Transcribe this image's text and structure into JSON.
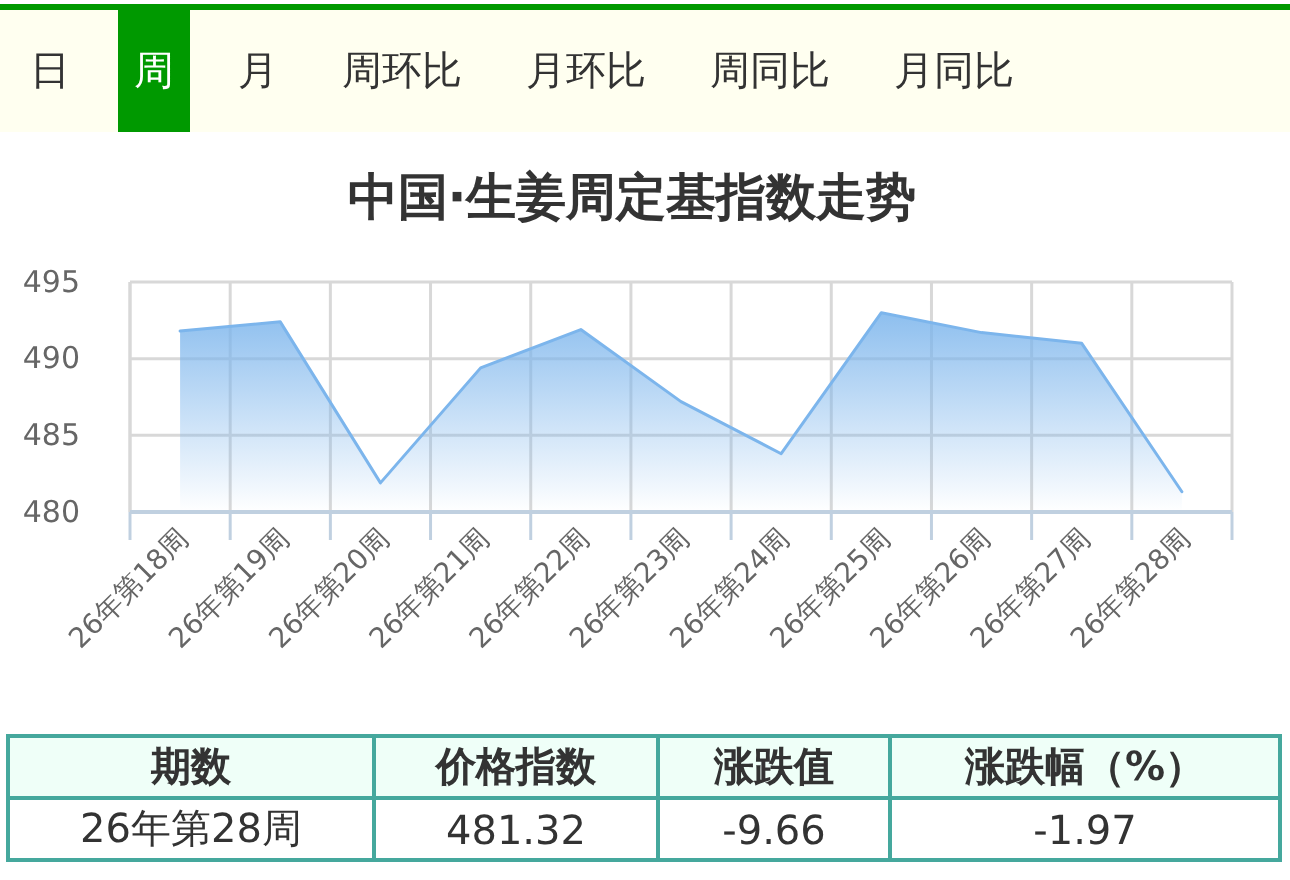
{
  "chart_data": [
    {
      "type": "other",
      "annotations": [
        "日",
        "周",
        "月",
        "周环比",
        "月环比",
        "周同比",
        "月同比"
      ]
    },
    {
      "type": "area",
      "title": "中国·生姜周定基指数走势",
      "categories": [
        "26年第18周",
        "26年第19周",
        "26年第20周",
        "26年第21周",
        "26年第22周",
        "26年第23周",
        "26年第24周",
        "26年第25周",
        "26年第26周",
        "26年第27周",
        "26年第28周"
      ],
      "series": [
        {
          "color": "#7cb5ec",
          "values": [
            491.8,
            492.4,
            481.9,
            489.4,
            491.9,
            487.2,
            483.8,
            493.0,
            491.7,
            491.0,
            481.32
          ]
        }
      ],
      "ylim": [
        480,
        495
      ],
      "yticks": [
        480,
        485,
        490,
        495
      ],
      "grid": true
    },
    {
      "type": "other",
      "annotations": [
        "期数",
        "价格指数",
        "涨跌值",
        "涨跌幅（%）",
        "26年第28周",
        "481.32",
        "-9.66",
        "-1.97"
      ]
    }
  ]
}
